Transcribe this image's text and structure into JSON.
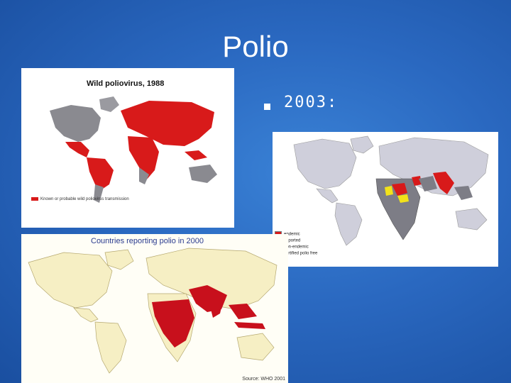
{
  "slide": {
    "title": "Polio",
    "bullet": "2003:"
  },
  "map_1988": {
    "title": "Wild poliovirus, 1988",
    "legend": "Known or probable wild poliovirus transmission"
  },
  "map_2000": {
    "title": "Countries reporting polio in 2000",
    "source": "Source: WHO 2001"
  },
  "map_2003": {
    "legend": [
      "endemic",
      "imported",
      "non-endemic",
      "certified polio free"
    ]
  },
  "colors": {
    "background": "#2a68c0",
    "endemic": "#d81a1a",
    "imported": "#f2e21a",
    "non_endemic": "#7d7d86",
    "polio_free": "#cfcfdb",
    "map_2000_land": "#f6efc4"
  }
}
